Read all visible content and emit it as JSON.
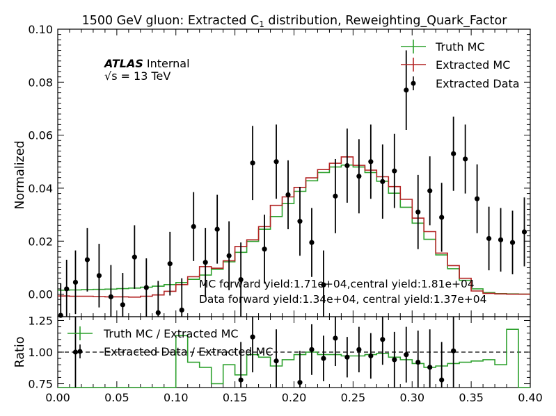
{
  "chart_data": [
    {
      "type": "line",
      "panel": "main",
      "title": "1500 GeV gluon: Extracted C",
      "title_sub": "1",
      "title_rest": " distribution, Reweighting_Quark_Factor",
      "xlabel": "",
      "ylabel": "Normalized",
      "xlim": [
        0.0,
        0.4
      ],
      "ylim": [
        -0.0085,
        0.1
      ],
      "yticks": [
        "0.00",
        "0.02",
        "0.04",
        "0.06",
        "0.08",
        "0.10"
      ],
      "experiment": "ATLAS",
      "experiment_status": "Internal",
      "energy_label_root": "√s",
      "energy_label_value": "= 13 TeV",
      "annotation_mc": "MC forward yield:1.71e+04,central yield:1.81e+04",
      "annotation_data": "Data forward yield:1.34e+04, central yield:1.37e+04",
      "legend_placement": "top-right",
      "bin_width": 0.01,
      "bin_starts": [
        0.0,
        0.01,
        0.02,
        0.03,
        0.04,
        0.05,
        0.06,
        0.07,
        0.08,
        0.09,
        0.1,
        0.11,
        0.12,
        0.13,
        0.14,
        0.15,
        0.16,
        0.17,
        0.18,
        0.19,
        0.2,
        0.21,
        0.22,
        0.23,
        0.24,
        0.25,
        0.26,
        0.27,
        0.28,
        0.29,
        0.3,
        0.31,
        0.32,
        0.33,
        0.34,
        0.35,
        0.36,
        0.37,
        0.38,
        0.39
      ],
      "series": [
        {
          "name": "Truth MC",
          "style": "step",
          "color": "#2ca02c",
          "values": [
            0.0015,
            0.0016,
            0.0017,
            0.0018,
            0.0019,
            0.0021,
            0.0023,
            0.0026,
            0.003,
            0.0036,
            0.0044,
            0.0056,
            0.0072,
            0.0094,
            0.0122,
            0.0158,
            0.0199,
            0.0245,
            0.0293,
            0.0342,
            0.0388,
            0.0428,
            0.0459,
            0.048,
            0.0487,
            0.048,
            0.0459,
            0.0426,
            0.0381,
            0.0328,
            0.0268,
            0.0207,
            0.0148,
            0.0096,
            0.0052,
            0.002,
            0.0006,
            0.0002,
            0.0001,
            0.0
          ]
        },
        {
          "name": "Extracted MC",
          "style": "step",
          "color": "#b22222",
          "values": [
            -0.0007,
            -0.0008,
            -0.0008,
            -0.0009,
            -0.001,
            -0.001,
            -0.0011,
            -0.0008,
            -0.0003,
            0.0011,
            0.0036,
            0.0066,
            0.0104,
            0.0098,
            0.0126,
            0.018,
            0.0205,
            0.0255,
            0.0335,
            0.0367,
            0.0403,
            0.0439,
            0.047,
            0.0494,
            0.0518,
            0.0486,
            0.0468,
            0.0443,
            0.0406,
            0.0358,
            0.0287,
            0.0236,
            0.0155,
            0.0108,
            0.006,
            0.0012,
            0.0003,
            0.0001,
            0.0,
            0.0
          ]
        },
        {
          "name": "Extracted Data",
          "style": "errorbar",
          "color": "#000000",
          "x": [
            0.0025,
            0.0075,
            0.015,
            0.025,
            0.035,
            0.045,
            0.055,
            0.065,
            0.075,
            0.085,
            0.095,
            0.105,
            0.115,
            0.125,
            0.135,
            0.145,
            0.155,
            0.165,
            0.175,
            0.185,
            0.195,
            0.205,
            0.215,
            0.225,
            0.235,
            0.245,
            0.255,
            0.265,
            0.275,
            0.285,
            0.295,
            0.305,
            0.315,
            0.325,
            0.335,
            0.345,
            0.355,
            0.365,
            0.375,
            0.385,
            0.395
          ],
          "values": [
            -0.008,
            0.002,
            0.0045,
            0.013,
            0.007,
            -0.001,
            -0.004,
            0.014,
            0.0025,
            -0.007,
            0.0115,
            -0.006,
            0.0255,
            0.012,
            0.0245,
            0.0145,
            0.0055,
            0.0495,
            0.017,
            0.05,
            0.0375,
            0.0275,
            0.0195,
            0.0035,
            0.037,
            0.0485,
            0.0445,
            0.05,
            0.0425,
            0.0465,
            0.077,
            0.031,
            0.039,
            0.029,
            0.053,
            0.051,
            0.036,
            0.021,
            0.0205,
            0.0195,
            0.0235
          ],
          "errors": [
            0.012,
            0.011,
            0.012,
            0.012,
            0.012,
            0.012,
            0.012,
            0.012,
            0.011,
            0.012,
            0.012,
            0.012,
            0.013,
            0.013,
            0.013,
            0.013,
            0.014,
            0.014,
            0.013,
            0.014,
            0.013,
            0.013,
            0.013,
            0.013,
            0.014,
            0.014,
            0.014,
            0.014,
            0.014,
            0.014,
            0.015,
            0.014,
            0.013,
            0.013,
            0.014,
            0.013,
            0.013,
            0.012,
            0.012,
            0.012,
            0.013
          ]
        }
      ]
    },
    {
      "type": "line",
      "panel": "ratio",
      "xlabel": "",
      "ylabel": "Ratio",
      "xlim": [
        0.0,
        0.4
      ],
      "ylim": [
        0.72,
        1.28
      ],
      "xticks": [
        "0.00",
        "0.05",
        "0.10",
        "0.15",
        "0.20",
        "0.25",
        "0.30",
        "0.35",
        "0.40"
      ],
      "yticks": [
        "0.75",
        "1.00",
        "1.25"
      ],
      "reference_line": 1.0,
      "legend_placement": "top-left",
      "series": [
        {
          "name": "Truth MC / Extracted MC",
          "style": "step",
          "color": "#2ca02c",
          "values": [
            0.7,
            0.7,
            0.7,
            0.7,
            0.7,
            0.7,
            0.7,
            0.7,
            0.7,
            0.7,
            1.13,
            0.92,
            0.88,
            0.75,
            0.9,
            0.82,
            0.98,
            0.96,
            0.89,
            0.94,
            0.98,
            1.0,
            0.98,
            0.98,
            0.97,
            0.97,
            0.98,
            0.99,
            0.96,
            0.94,
            0.91,
            0.88,
            0.89,
            0.91,
            0.92,
            0.93,
            0.94,
            0.9,
            1.18,
            0.7
          ]
        },
        {
          "name": "Extracted Data / Extracted MC",
          "style": "errorbar",
          "color": "#000000",
          "x": [
            0.015,
            0.155,
            0.165,
            0.185,
            0.205,
            0.215,
            0.225,
            0.235,
            0.245,
            0.255,
            0.265,
            0.275,
            0.285,
            0.295,
            0.305,
            0.315,
            0.325,
            0.335
          ],
          "values": [
            1.0,
            0.78,
            1.12,
            0.93,
            0.76,
            1.02,
            0.95,
            1.11,
            0.96,
            1.02,
            0.97,
            1.1,
            0.94,
            0.98,
            0.92,
            0.88,
            0.78,
            1.01
          ],
          "errors": [
            0.45,
            0.3,
            0.28,
            0.25,
            0.25,
            0.2,
            0.18,
            0.22,
            0.16,
            0.18,
            0.18,
            0.2,
            0.22,
            0.22,
            0.25,
            0.3,
            0.3,
            0.35
          ]
        }
      ]
    }
  ]
}
